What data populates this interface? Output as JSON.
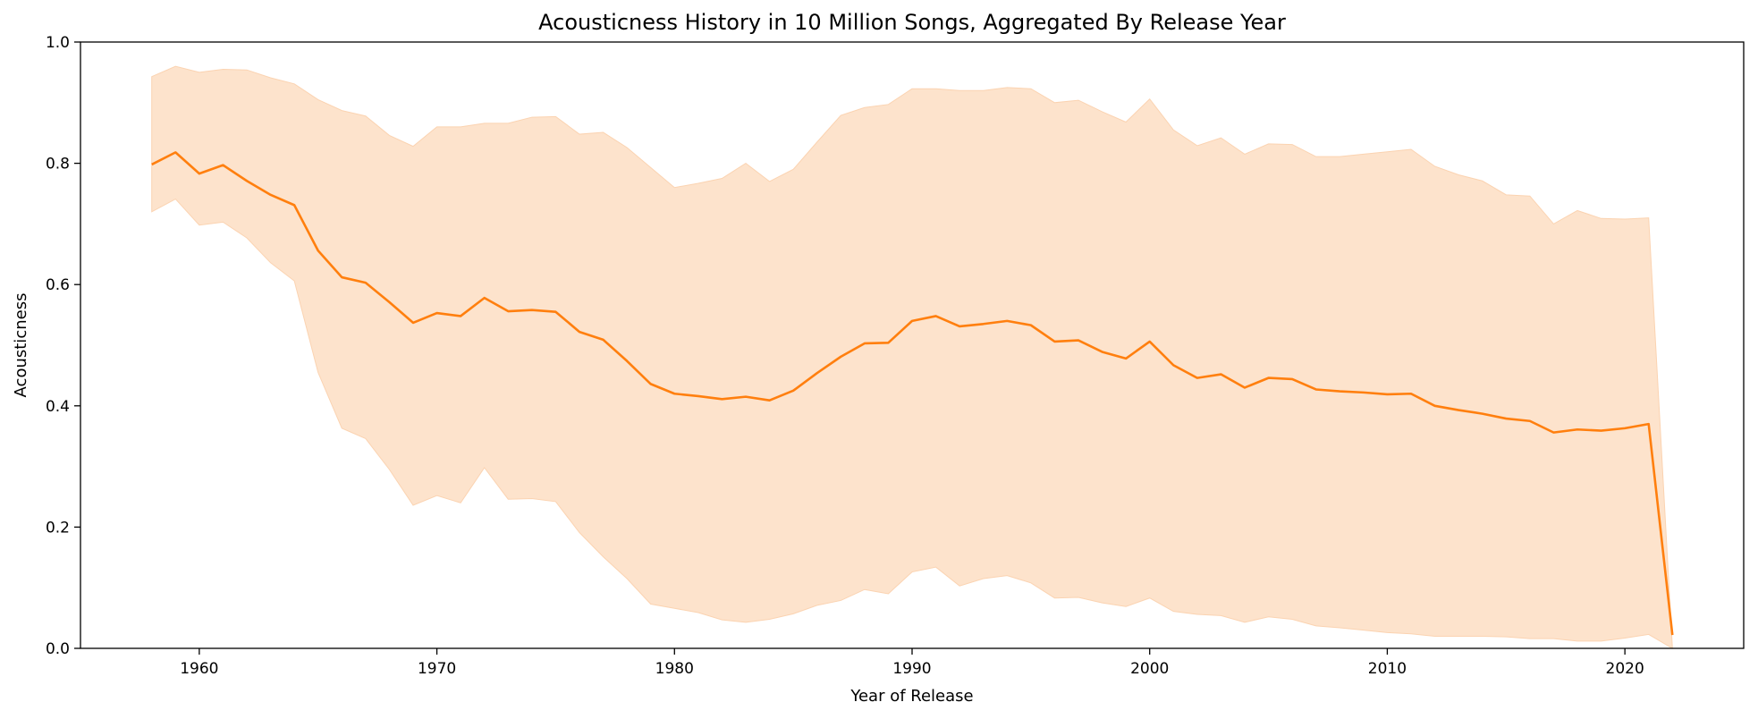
{
  "chart_data": {
    "type": "line",
    "title": "Acousticness History in 10 Million Songs, Aggregated By Release Year",
    "xlabel": "Year of Release",
    "ylabel": "Acousticness",
    "xlim": [
      1955,
      2025
    ],
    "ylim": [
      0.0,
      1.0
    ],
    "x_ticks": [
      1960,
      1970,
      1980,
      1990,
      2000,
      2010,
      2020
    ],
    "y_ticks": [
      "0.0",
      "0.2",
      "0.4",
      "0.6",
      "0.8",
      "1.0"
    ],
    "grid": false,
    "legend": "none",
    "x": [
      1958,
      1959,
      1960,
      1961,
      1962,
      1963,
      1964,
      1965,
      1966,
      1967,
      1968,
      1969,
      1970,
      1971,
      1972,
      1973,
      1974,
      1975,
      1976,
      1977,
      1978,
      1979,
      1980,
      1981,
      1982,
      1983,
      1984,
      1985,
      1986,
      1987,
      1988,
      1989,
      1990,
      1991,
      1992,
      1993,
      1994,
      1995,
      1996,
      1997,
      1998,
      1999,
      2000,
      2001,
      2002,
      2003,
      2004,
      2005,
      2006,
      2007,
      2008,
      2009,
      2010,
      2011,
      2012,
      2013,
      2014,
      2015,
      2016,
      2017,
      2018,
      2019,
      2020,
      2021,
      2022
    ],
    "series": [
      {
        "name": "",
        "color": "#ff7f0e",
        "band_color": "#fde3cc",
        "mean": [
          0.798,
          0.818,
          0.783,
          0.797,
          0.771,
          0.748,
          0.731,
          0.656,
          0.612,
          0.603,
          0.571,
          0.537,
          0.553,
          0.548,
          0.578,
          0.556,
          0.558,
          0.555,
          0.522,
          0.509,
          0.474,
          0.436,
          0.42,
          0.416,
          0.411,
          0.415,
          0.409,
          0.425,
          0.454,
          0.481,
          0.503,
          0.504,
          0.54,
          0.548,
          0.531,
          0.535,
          0.54,
          0.533,
          0.506,
          0.508,
          0.489,
          0.478,
          0.506,
          0.467,
          0.446,
          0.452,
          0.43,
          0.446,
          0.444,
          0.427,
          0.424,
          0.422,
          0.419,
          0.42,
          0.4,
          0.393,
          0.387,
          0.379,
          0.375,
          0.356,
          0.361,
          0.359,
          0.363,
          0.37,
          0.022
        ],
        "upper": [
          0.943,
          0.96,
          0.95,
          0.955,
          0.954,
          0.941,
          0.931,
          0.905,
          0.887,
          0.878,
          0.846,
          0.828,
          0.86,
          0.86,
          0.866,
          0.866,
          0.876,
          0.877,
          0.848,
          0.851,
          0.826,
          0.793,
          0.76,
          0.767,
          0.775,
          0.8,
          0.77,
          0.79,
          0.835,
          0.879,
          0.892,
          0.897,
          0.923,
          0.923,
          0.92,
          0.92,
          0.925,
          0.923,
          0.9,
          0.904,
          0.885,
          0.868,
          0.906,
          0.855,
          0.829,
          0.842,
          0.815,
          0.832,
          0.831,
          0.811,
          0.811,
          0.815,
          0.819,
          0.823,
          0.795,
          0.781,
          0.771,
          0.748,
          0.746,
          0.7,
          0.722,
          0.709,
          0.708,
          0.71,
          0.0
        ],
        "lower": [
          0.72,
          0.741,
          0.698,
          0.703,
          0.677,
          0.636,
          0.606,
          0.455,
          0.363,
          0.346,
          0.295,
          0.236,
          0.252,
          0.24,
          0.298,
          0.246,
          0.247,
          0.242,
          0.191,
          0.151,
          0.115,
          0.073,
          0.066,
          0.059,
          0.047,
          0.043,
          0.048,
          0.057,
          0.071,
          0.079,
          0.097,
          0.09,
          0.126,
          0.134,
          0.103,
          0.115,
          0.12,
          0.108,
          0.083,
          0.084,
          0.075,
          0.069,
          0.083,
          0.061,
          0.056,
          0.054,
          0.043,
          0.052,
          0.048,
          0.037,
          0.034,
          0.03,
          0.026,
          0.024,
          0.02,
          0.02,
          0.02,
          0.019,
          0.016,
          0.016,
          0.012,
          0.012,
          0.017,
          0.023,
          0.0
        ]
      }
    ]
  }
}
